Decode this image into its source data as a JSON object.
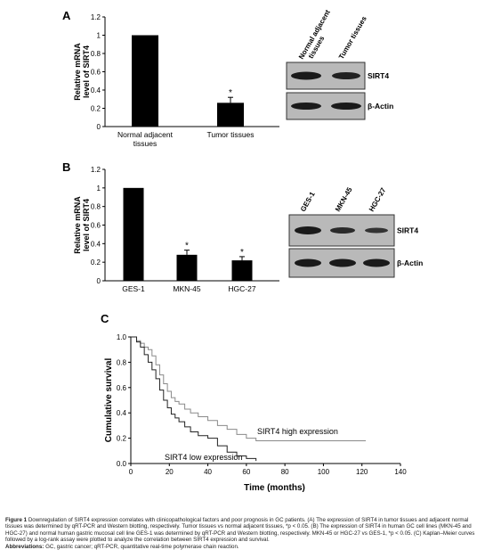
{
  "panels": {
    "a": {
      "letter": "A",
      "blot_labels": [
        "Normal adjacent tissues",
        "Tumor tissues"
      ],
      "blot_rows": [
        "SIRT4",
        "β-Actin"
      ]
    },
    "b": {
      "letter": "B",
      "blot_labels": [
        "GES-1",
        "MKN-45",
        "HGC-27"
      ],
      "blot_rows": [
        "SIRT4",
        "β-Actin"
      ]
    },
    "c": {
      "letter": "C"
    }
  },
  "chart_data": [
    {
      "type": "bar",
      "panel": "A",
      "ylabel": [
        "Relative mRNA",
        "level of SIRT4"
      ],
      "ylim": [
        0,
        1.2
      ],
      "yticks": [
        "0",
        "0.2",
        "0.4",
        "0.6",
        "0.8",
        "1",
        "1.2"
      ],
      "categories": [
        [
          "Normal adjacent",
          "tissues"
        ],
        [
          "Tumor tissues"
        ]
      ],
      "values": [
        1.0,
        0.26
      ],
      "errors": [
        0.0,
        0.06
      ],
      "significance": [
        "",
        "*"
      ]
    },
    {
      "type": "bar",
      "panel": "B",
      "ylabel": [
        "Relative mRNA",
        "level of SIRT4"
      ],
      "ylim": [
        0,
        1.2
      ],
      "yticks": [
        "0",
        "0.2",
        "0.4",
        "0.6",
        "0.8",
        "1",
        "1.2"
      ],
      "categories": [
        [
          "GES-1"
        ],
        [
          "MKN-45"
        ],
        [
          "HGC-27"
        ]
      ],
      "values": [
        1.0,
        0.28,
        0.22
      ],
      "errors": [
        0.0,
        0.05,
        0.04
      ],
      "significance": [
        "",
        "*",
        "*"
      ]
    },
    {
      "type": "line",
      "panel": "C",
      "xlabel": "Time (months)",
      "ylabel": "Cumulative survival",
      "xlim": [
        0,
        140
      ],
      "ylim": [
        0,
        1.0
      ],
      "xticks": [
        "0",
        "20",
        "40",
        "60",
        "80",
        "100",
        "120",
        "140"
      ],
      "yticks": [
        "0.0",
        "0.2",
        "0.4",
        "0.6",
        "0.8",
        "1.0"
      ],
      "series": [
        {
          "name": "SIRT4 high expression",
          "points": [
            [
              0,
              1.0
            ],
            [
              3,
              0.97
            ],
            [
              5,
              0.95
            ],
            [
              7,
              0.92
            ],
            [
              9,
              0.9
            ],
            [
              11,
              0.85
            ],
            [
              13,
              0.78
            ],
            [
              15,
              0.7
            ],
            [
              17,
              0.63
            ],
            [
              19,
              0.57
            ],
            [
              21,
              0.52
            ],
            [
              23,
              0.49
            ],
            [
              25,
              0.47
            ],
            [
              28,
              0.43
            ],
            [
              31,
              0.4
            ],
            [
              35,
              0.37
            ],
            [
              40,
              0.34
            ],
            [
              45,
              0.3
            ],
            [
              50,
              0.27
            ],
            [
              55,
              0.23
            ],
            [
              60,
              0.2
            ],
            [
              65,
              0.18
            ],
            [
              122,
              0.18
            ]
          ]
        },
        {
          "name": "SIRT4 low expression",
          "points": [
            [
              0,
              1.0
            ],
            [
              3,
              0.96
            ],
            [
              5,
              0.92
            ],
            [
              7,
              0.86
            ],
            [
              9,
              0.8
            ],
            [
              11,
              0.74
            ],
            [
              13,
              0.67
            ],
            [
              15,
              0.58
            ],
            [
              17,
              0.5
            ],
            [
              19,
              0.44
            ],
            [
              21,
              0.39
            ],
            [
              23,
              0.36
            ],
            [
              25,
              0.33
            ],
            [
              28,
              0.29
            ],
            [
              31,
              0.25
            ],
            [
              35,
              0.22
            ],
            [
              40,
              0.2
            ],
            [
              45,
              0.14
            ],
            [
              50,
              0.09
            ],
            [
              55,
              0.06
            ],
            [
              60,
              0.04
            ],
            [
              65,
              0.02
            ]
          ]
        }
      ]
    }
  ],
  "caption": {
    "title": "Figure 1",
    "text": "Downregulation of SIRT4 expression correlates with clinicopathological factors and poor prognosis in GC patients. (A) The expression of SIRT4 in tumor tissues and adjacent normal tissues was determined by qRT-PCR and Western blotting, respectively. Tumor tissues vs normal adjacent tissues, *p < 0.05. (B) The expression of SIRT4 in human GC cell lines (MKN-45 and HGC-27) and normal human gastric mucosal cell line GES-1 was determined by qRT-PCR and Western blotting, respectively. MKN-45 or HGC-27 vs GES-1, *p < 0.05. (C) Kaplan–Meier curves followed by a log-rank assay were plotted to analyze the correlation between SIRT4 expression and survival.",
    "abbrev_label": "Abbreviations:",
    "abbrev_text": "GC, gastric cancer; qRT-PCR, quantitative real-time polymerase chain reaction."
  }
}
